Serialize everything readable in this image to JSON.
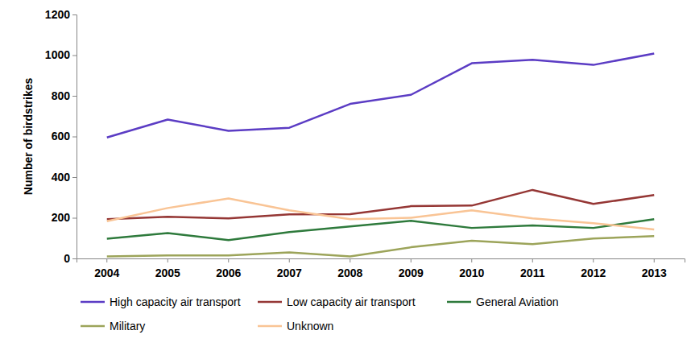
{
  "chart_data": {
    "type": "line",
    "y_label": "Number of birdstrikes",
    "categories": [
      "2004",
      "2005",
      "2006",
      "2007",
      "2008",
      "2009",
      "2010",
      "2011",
      "2012",
      "2013"
    ],
    "series": [
      {
        "name": "High capacity air transport",
        "color": "#5b3cc4",
        "values": [
          595,
          683,
          628,
          643,
          760,
          805,
          960,
          977,
          952,
          1008
        ]
      },
      {
        "name": "Low capacity air transport",
        "color": "#953735",
        "values": [
          193,
          205,
          197,
          217,
          218,
          257,
          260,
          337,
          268,
          312
        ]
      },
      {
        "name": "General Aviation",
        "color": "#2e7a3c",
        "values": [
          97,
          125,
          90,
          130,
          157,
          185,
          150,
          162,
          150,
          193
        ]
      },
      {
        "name": "Military",
        "color": "#9ca45a",
        "values": [
          10,
          15,
          15,
          30,
          10,
          55,
          87,
          70,
          98,
          110
        ]
      },
      {
        "name": "Unknown",
        "color": "#f9c495",
        "values": [
          183,
          248,
          295,
          237,
          193,
          200,
          237,
          197,
          173,
          143
        ]
      }
    ],
    "ylim": [
      0,
      1200
    ],
    "yticks": [
      0,
      200,
      400,
      600,
      800,
      1000,
      1200
    ],
    "grid": false,
    "legend": "bottom"
  }
}
